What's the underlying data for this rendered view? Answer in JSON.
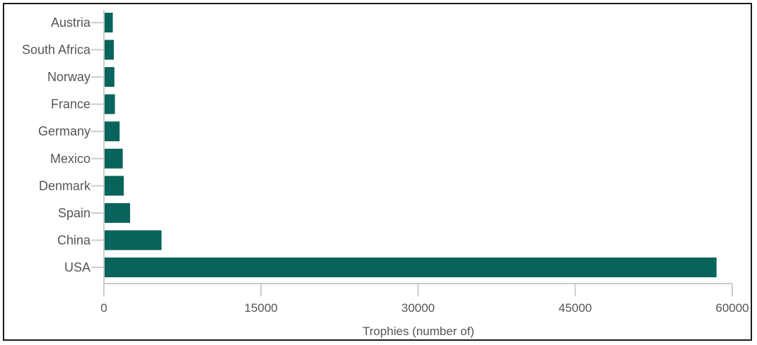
{
  "chart_data": {
    "type": "bar",
    "orientation": "horizontal",
    "title": "",
    "xlabel": "Trophies (number of)",
    "ylabel": "",
    "categories": [
      "Austria",
      "South Africa",
      "Norway",
      "France",
      "Germany",
      "Mexico",
      "Denmark",
      "Spain",
      "China",
      "USA"
    ],
    "values": [
      850,
      950,
      1000,
      1050,
      1500,
      1800,
      1900,
      2500,
      5500,
      58500
    ],
    "xlim": [
      0,
      60000
    ],
    "xticks": [
      0,
      15000,
      30000,
      45000,
      60000
    ],
    "bar_color": "#08645a",
    "grid": false,
    "legend": "none"
  }
}
